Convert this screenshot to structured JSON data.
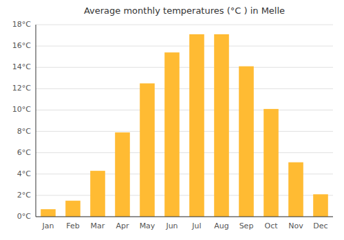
{
  "chart_data": {
    "type": "bar",
    "title": "Average monthly temperatures (°C ) in Melle",
    "categories": [
      "Jan",
      "Feb",
      "Mar",
      "Apr",
      "May",
      "Jun",
      "Jul",
      "Aug",
      "Sep",
      "Oct",
      "Nov",
      "Dec"
    ],
    "values": [
      0.7,
      1.5,
      4.3,
      7.9,
      12.5,
      15.4,
      17.1,
      17.1,
      14.1,
      10.1,
      5.1,
      2.1
    ],
    "color": "#FFBB33",
    "ylim": [
      0,
      18
    ],
    "yticks": [
      {
        "value": 0,
        "label": "0°C"
      },
      {
        "value": 2,
        "label": "2°C"
      },
      {
        "value": 4,
        "label": "4°C"
      },
      {
        "value": 6,
        "label": "6°C"
      },
      {
        "value": 8,
        "label": "8°C"
      },
      {
        "value": 10,
        "label": "10°C"
      },
      {
        "value": 12,
        "label": "12°C"
      },
      {
        "value": 14,
        "label": "14°C"
      },
      {
        "value": 16,
        "label": "16°C"
      },
      {
        "value": 18,
        "label": "18°C"
      }
    ],
    "grid": true
  }
}
